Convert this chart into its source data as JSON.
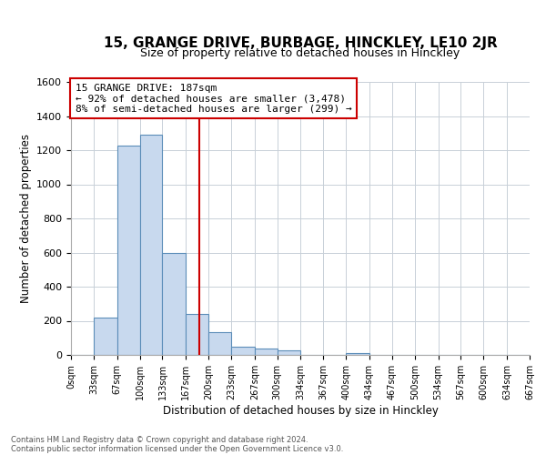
{
  "title": "15, GRANGE DRIVE, BURBAGE, HINCKLEY, LE10 2JR",
  "subtitle": "Size of property relative to detached houses in Hinckley",
  "xlabel": "Distribution of detached houses by size in Hinckley",
  "ylabel": "Number of detached properties",
  "bin_edges": [
    0,
    33,
    67,
    100,
    133,
    167,
    200,
    233,
    267,
    300,
    334,
    367,
    400,
    434,
    467,
    500,
    534,
    567,
    600,
    634,
    667
  ],
  "bin_labels": [
    "0sqm",
    "33sqm",
    "67sqm",
    "100sqm",
    "133sqm",
    "167sqm",
    "200sqm",
    "233sqm",
    "267sqm",
    "300sqm",
    "334sqm",
    "367sqm",
    "400sqm",
    "434sqm",
    "467sqm",
    "500sqm",
    "534sqm",
    "567sqm",
    "600sqm",
    "634sqm",
    "667sqm"
  ],
  "counts": [
    0,
    220,
    1225,
    1290,
    598,
    242,
    132,
    50,
    40,
    25,
    0,
    0,
    10,
    0,
    0,
    0,
    0,
    0,
    0,
    0
  ],
  "bar_color": "#c8d9ee",
  "bar_edge_color": "#5b8db8",
  "vline_x": 187,
  "vline_color": "#cc0000",
  "annotation_title": "15 GRANGE DRIVE: 187sqm",
  "annotation_line1": "← 92% of detached houses are smaller (3,478)",
  "annotation_line2": "8% of semi-detached houses are larger (299) →",
  "annotation_box_color": "#ffffff",
  "annotation_box_edge": "#cc0000",
  "ylim": [
    0,
    1600
  ],
  "yticks": [
    0,
    200,
    400,
    600,
    800,
    1000,
    1200,
    1400,
    1600
  ],
  "footer1": "Contains HM Land Registry data © Crown copyright and database right 2024.",
  "footer2": "Contains public sector information licensed under the Open Government Licence v3.0.",
  "background_color": "#ffffff",
  "grid_color": "#c8d0d8",
  "title_fontsize": 11,
  "subtitle_fontsize": 9
}
